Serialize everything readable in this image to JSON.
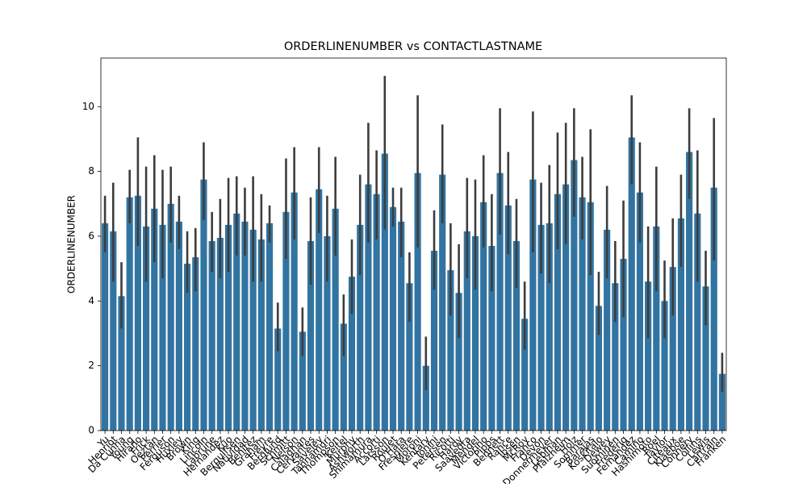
{
  "chart_data": {
    "type": "bar",
    "title": "ORDERLINENUMBER vs CONTACTLASTNAME",
    "y_label": "ORDERLINENUMBER",
    "categories": [
      "Yu",
      "Henriot",
      "Da Cunha",
      "Young",
      "Hirano",
      "Frick",
      "Oeztan",
      "Perrier",
      "Ferguson",
      "Huxley",
      "Brown",
      "King",
      "Lincoln",
      "Labrune",
      "Hernandez",
      "Kuo",
      "Bergulfsen",
      "Natividad",
      "Benitez",
      "Graham",
      "Freyre",
      "Berglund",
      "Schmitt",
      "Nelson",
      "Calaghan",
      "Cervantes",
      "Saveley",
      "Tannamuri",
      "Thompson",
      "Keitel",
      "Murphy",
      "Ashworth",
      "Shimamura",
      "Accorti",
      "Larsson",
      "Roulet",
      "O'Hara",
      "Fresnière",
      "Moroni",
      "Kentary",
      "Tonini",
      "Petersen",
      "Ricotti",
      "Hardy",
      "Saavedra",
      "Mendel",
      "Victorino",
      "Pipps",
      "Bennett",
      "Rance",
      "Ibsen",
      "McRoy",
      "Franco",
      "Devon",
      "Donnermeyer",
      "Lebihan",
      "Pfalzheim",
      "Holz",
      "Sommer",
      "Barajas",
      "Koskitalo",
      "Dewey",
      "Suominen",
      "Frederiq",
      "Fernandez",
      "Camino",
      "Hashimoto",
      "Roel",
      "Taylor",
      "Citeaux",
      "Klaeboe",
      "Connery",
      "Collins",
      "Lewis",
      "Cartrain",
      "Franken"
    ],
    "values": [
      6.4,
      6.15,
      4.15,
      7.2,
      7.25,
      6.3,
      6.85,
      6.35,
      7.0,
      6.45,
      5.15,
      5.35,
      7.75,
      5.85,
      5.95,
      6.35,
      6.7,
      6.45,
      6.2,
      5.9,
      6.4,
      3.15,
      6.75,
      7.35,
      3.05,
      5.85,
      7.45,
      6.0,
      6.85,
      3.3,
      4.75,
      6.35,
      7.6,
      7.3,
      8.55,
      6.9,
      6.45,
      4.55,
      7.95,
      2.0,
      5.55,
      7.9,
      4.95,
      4.25,
      6.15,
      6.0,
      7.05,
      5.7,
      7.95,
      6.95,
      5.85,
      3.45,
      7.75,
      6.35,
      6.4,
      7.3,
      7.6,
      8.35,
      7.2,
      7.05,
      3.85,
      6.2,
      4.55,
      5.3,
      9.05,
      7.35,
      4.6,
      6.3,
      4.0,
      5.05,
      6.55,
      8.6,
      6.7,
      4.45,
      7.5,
      1.75
    ],
    "ci_low": [
      5.5,
      4.6,
      3.15,
      6.4,
      5.7,
      4.6,
      5.2,
      4.7,
      5.8,
      5.6,
      4.25,
      4.3,
      6.5,
      4.9,
      4.7,
      4.9,
      5.4,
      5.4,
      4.6,
      4.6,
      5.8,
      2.45,
      5.3,
      5.9,
      2.3,
      4.5,
      6.1,
      4.6,
      5.4,
      2.3,
      3.6,
      4.8,
      5.8,
      5.9,
      6.2,
      6.3,
      5.35,
      3.35,
      5.65,
      1.25,
      4.35,
      6.4,
      3.55,
      2.85,
      4.7,
      4.35,
      5.65,
      4.3,
      6.05,
      5.45,
      4.4,
      2.5,
      5.5,
      4.85,
      4.55,
      5.6,
      5.75,
      6.6,
      5.9,
      4.8,
      2.95,
      4.7,
      3.35,
      3.5,
      7.6,
      5.8,
      2.85,
      4.3,
      2.85,
      3.55,
      5.05,
      7.15,
      4.6,
      3.25,
      5.25,
      1.2
    ],
    "ci_high": [
      7.25,
      7.65,
      5.2,
      8.05,
      9.05,
      8.15,
      8.5,
      8.05,
      8.15,
      7.25,
      6.15,
      6.25,
      8.9,
      6.75,
      7.15,
      7.8,
      7.85,
      7.5,
      7.85,
      7.3,
      6.95,
      3.95,
      8.4,
      8.75,
      3.8,
      7.2,
      8.75,
      7.25,
      8.45,
      4.2,
      5.9,
      7.9,
      9.5,
      8.65,
      10.95,
      7.5,
      7.5,
      5.5,
      10.35,
      2.9,
      6.8,
      9.45,
      6.4,
      5.75,
      7.8,
      7.75,
      8.5,
      7.3,
      9.95,
      8.6,
      7.15,
      4.6,
      9.85,
      7.65,
      8.2,
      9.2,
      9.5,
      9.95,
      8.45,
      9.3,
      4.9,
      7.55,
      5.85,
      7.1,
      10.35,
      8.9,
      6.3,
      8.15,
      5.25,
      6.55,
      7.9,
      9.95,
      8.65,
      5.55,
      9.65,
      2.4
    ],
    "color": "#3274a1",
    "error_color": "#3d3d3d",
    "ylim": [
      0,
      11.5
    ],
    "yticks": [
      0,
      2,
      4,
      6,
      8,
      10
    ],
    "grid": false
  }
}
